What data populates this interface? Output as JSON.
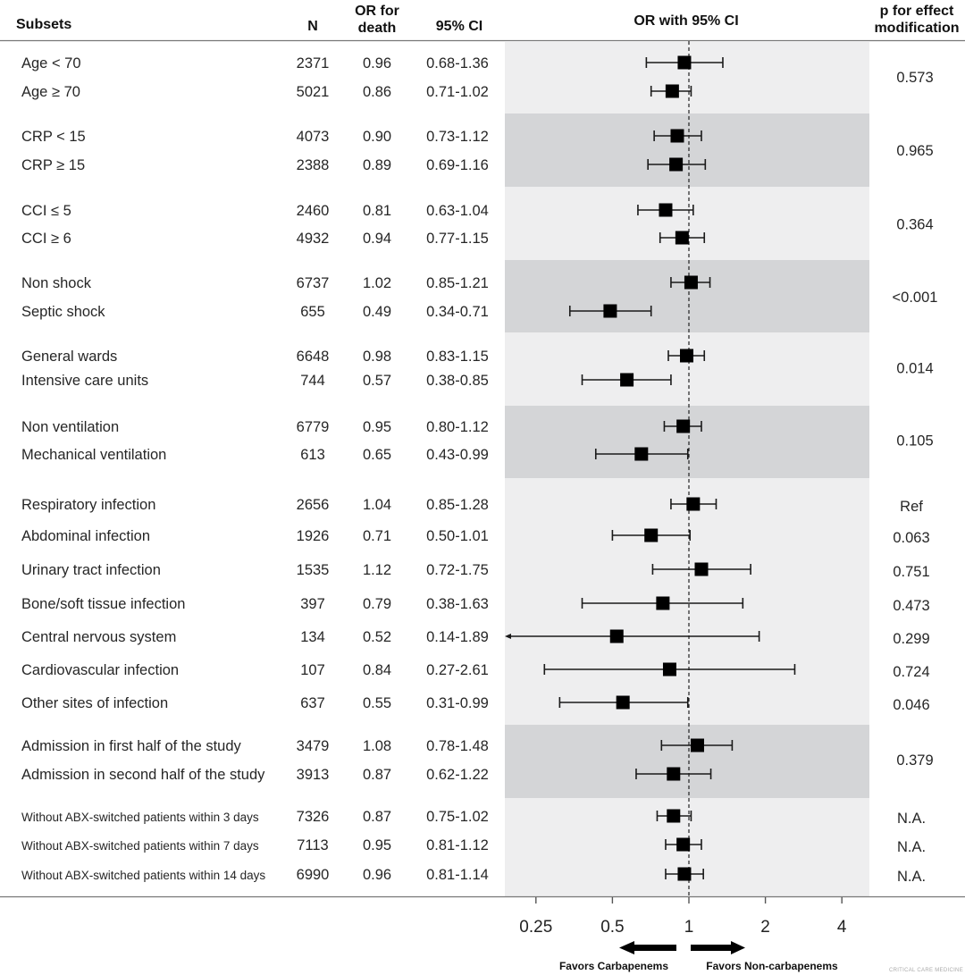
{
  "chart_data": {
    "type": "forest",
    "title": "",
    "columns": {
      "subsets": "Subsets",
      "n": "N",
      "or_line1": "OR for",
      "or_line2": "death",
      "ci": "95% CI",
      "plot": "OR with 95% CI",
      "p_line1": "p for effect",
      "p_line2": "modification"
    },
    "x_axis": {
      "scale": "log2",
      "ticks": [
        0.25,
        0.5,
        1,
        2,
        4
      ],
      "tick_labels": [
        "0.25",
        "0.5",
        "1",
        "2",
        "4"
      ],
      "xlim": [
        0.21,
        5.5
      ],
      "reference_line": 1
    },
    "favors_left": "Favors Carbapenems",
    "favors_right": "Favors Non-carbapenems",
    "credit": "CRITICAL CARE MEDICINE",
    "groups": [
      {
        "shade": "light",
        "p": "0.573",
        "rows": [
          {
            "label": "Age < 70",
            "n": "2371",
            "or": 0.96,
            "or_text": "0.96",
            "lo": 0.68,
            "hi": 1.36,
            "ci_text": "0.68-1.36"
          },
          {
            "label": "Age ≥ 70",
            "n": "5021",
            "or": 0.86,
            "or_text": "0.86",
            "lo": 0.71,
            "hi": 1.02,
            "ci_text": "0.71-1.02"
          }
        ]
      },
      {
        "shade": "dark",
        "p": "0.965",
        "rows": [
          {
            "label": "CRP < 15",
            "n": "4073",
            "or": 0.9,
            "or_text": "0.90",
            "lo": 0.73,
            "hi": 1.12,
            "ci_text": "0.73-1.12"
          },
          {
            "label": "CRP ≥ 15",
            "n": "2388",
            "or": 0.89,
            "or_text": "0.89",
            "lo": 0.69,
            "hi": 1.16,
            "ci_text": "0.69-1.16"
          }
        ]
      },
      {
        "shade": "light",
        "p": "0.364",
        "rows": [
          {
            "label": "CCI ≤ 5",
            "n": "2460",
            "or": 0.81,
            "or_text": "0.81",
            "lo": 0.63,
            "hi": 1.04,
            "ci_text": "0.63-1.04"
          },
          {
            "label": "CCI ≥ 6",
            "n": "4932",
            "or": 0.94,
            "or_text": "0.94",
            "lo": 0.77,
            "hi": 1.15,
            "ci_text": "0.77-1.15"
          }
        ]
      },
      {
        "shade": "dark",
        "p": "<0.001",
        "rows": [
          {
            "label": "Non shock",
            "n": "6737",
            "or": 1.02,
            "or_text": "1.02",
            "lo": 0.85,
            "hi": 1.21,
            "ci_text": "0.85-1.21"
          },
          {
            "label": "Septic shock",
            "n": "655",
            "or": 0.49,
            "or_text": "0.49",
            "lo": 0.34,
            "hi": 0.71,
            "ci_text": "0.34-0.71"
          }
        ]
      },
      {
        "shade": "light",
        "p": "0.014",
        "rows": [
          {
            "label": "General wards",
            "n": "6648",
            "or": 0.98,
            "or_text": "0.98",
            "lo": 0.83,
            "hi": 1.15,
            "ci_text": "0.83-1.15"
          },
          {
            "label": "Intensive care units",
            "n": "744",
            "or": 0.57,
            "or_text": "0.57",
            "lo": 0.38,
            "hi": 0.85,
            "ci_text": "0.38-0.85"
          }
        ]
      },
      {
        "shade": "dark",
        "p": "0.105",
        "rows": [
          {
            "label": "Non ventilation",
            "n": "6779",
            "or": 0.95,
            "or_text": "0.95",
            "lo": 0.8,
            "hi": 1.12,
            "ci_text": "0.80-1.12"
          },
          {
            "label": "Mechanical ventilation",
            "n": "613",
            "or": 0.65,
            "or_text": "0.65",
            "lo": 0.43,
            "hi": 0.99,
            "ci_text": "0.43-0.99"
          }
        ]
      },
      {
        "shade": "light",
        "p": null,
        "rows": [
          {
            "label": "Respiratory infection",
            "n": "2656",
            "or": 1.04,
            "or_text": "1.04",
            "lo": 0.85,
            "hi": 1.28,
            "ci_text": "0.85-1.28",
            "p": "Ref"
          },
          {
            "label": "Abdominal infection",
            "n": "1926",
            "or": 0.71,
            "or_text": "0.71",
            "lo": 0.5,
            "hi": 1.01,
            "ci_text": "0.50-1.01",
            "p": "0.063"
          },
          {
            "label": "Urinary tract infection",
            "n": "1535",
            "or": 1.12,
            "or_text": "1.12",
            "lo": 0.72,
            "hi": 1.75,
            "ci_text": "0.72-1.75",
            "p": "0.751"
          },
          {
            "label": "Bone/soft tissue infection",
            "n": "397",
            "or": 0.79,
            "or_text": "0.79",
            "lo": 0.38,
            "hi": 1.63,
            "ci_text": "0.38-1.63",
            "p": "0.473"
          },
          {
            "label": "Central nervous system",
            "n": "134",
            "or": 0.52,
            "or_text": "0.52",
            "lo": 0.14,
            "hi": 1.89,
            "ci_text": "0.14-1.89",
            "p": "0.299",
            "truncated_low": true
          },
          {
            "label": "Cardiovascular infection",
            "n": "107",
            "or": 0.84,
            "or_text": "0.84",
            "lo": 0.27,
            "hi": 2.61,
            "ci_text": "0.27-2.61",
            "p": "0.724"
          },
          {
            "label": "Other sites of infection",
            "n": "637",
            "or": 0.55,
            "or_text": "0.55",
            "lo": 0.31,
            "hi": 0.99,
            "ci_text": "0.31-0.99",
            "p": "0.046"
          }
        ]
      },
      {
        "shade": "dark",
        "p": "0.379",
        "rows": [
          {
            "label": "Admission in first half of the study",
            "n": "3479",
            "or": 1.08,
            "or_text": "1.08",
            "lo": 0.78,
            "hi": 1.48,
            "ci_text": "0.78-1.48"
          },
          {
            "label": "Admission in second half of the study",
            "n": "3913",
            "or": 0.87,
            "or_text": "0.87",
            "lo": 0.62,
            "hi": 1.22,
            "ci_text": "0.62-1.22"
          }
        ]
      },
      {
        "shade": "light",
        "p": null,
        "small_labels": true,
        "rows": [
          {
            "label": "Without ABX-switched patients within 3 days",
            "n": "7326",
            "or": 0.87,
            "or_text": "0.87",
            "lo": 0.75,
            "hi": 1.02,
            "ci_text": "0.75-1.02",
            "p": "N.A."
          },
          {
            "label": "Without ABX-switched patients within 7 days",
            "n": "7113",
            "or": 0.95,
            "or_text": "0.95",
            "lo": 0.81,
            "hi": 1.12,
            "ci_text": "0.81-1.12",
            "p": "N.A."
          },
          {
            "label": "Without ABX-switched patients within 14 days",
            "n": "6990",
            "or": 0.96,
            "or_text": "0.96",
            "lo": 0.81,
            "hi": 1.14,
            "ci_text": "0.81-1.14",
            "p": "N.A."
          }
        ]
      }
    ],
    "colors": {
      "band_light": "#eeeeef",
      "band_dark": "#d4d5d7",
      "marker": "#000000",
      "line": "#1a1a1a"
    }
  }
}
